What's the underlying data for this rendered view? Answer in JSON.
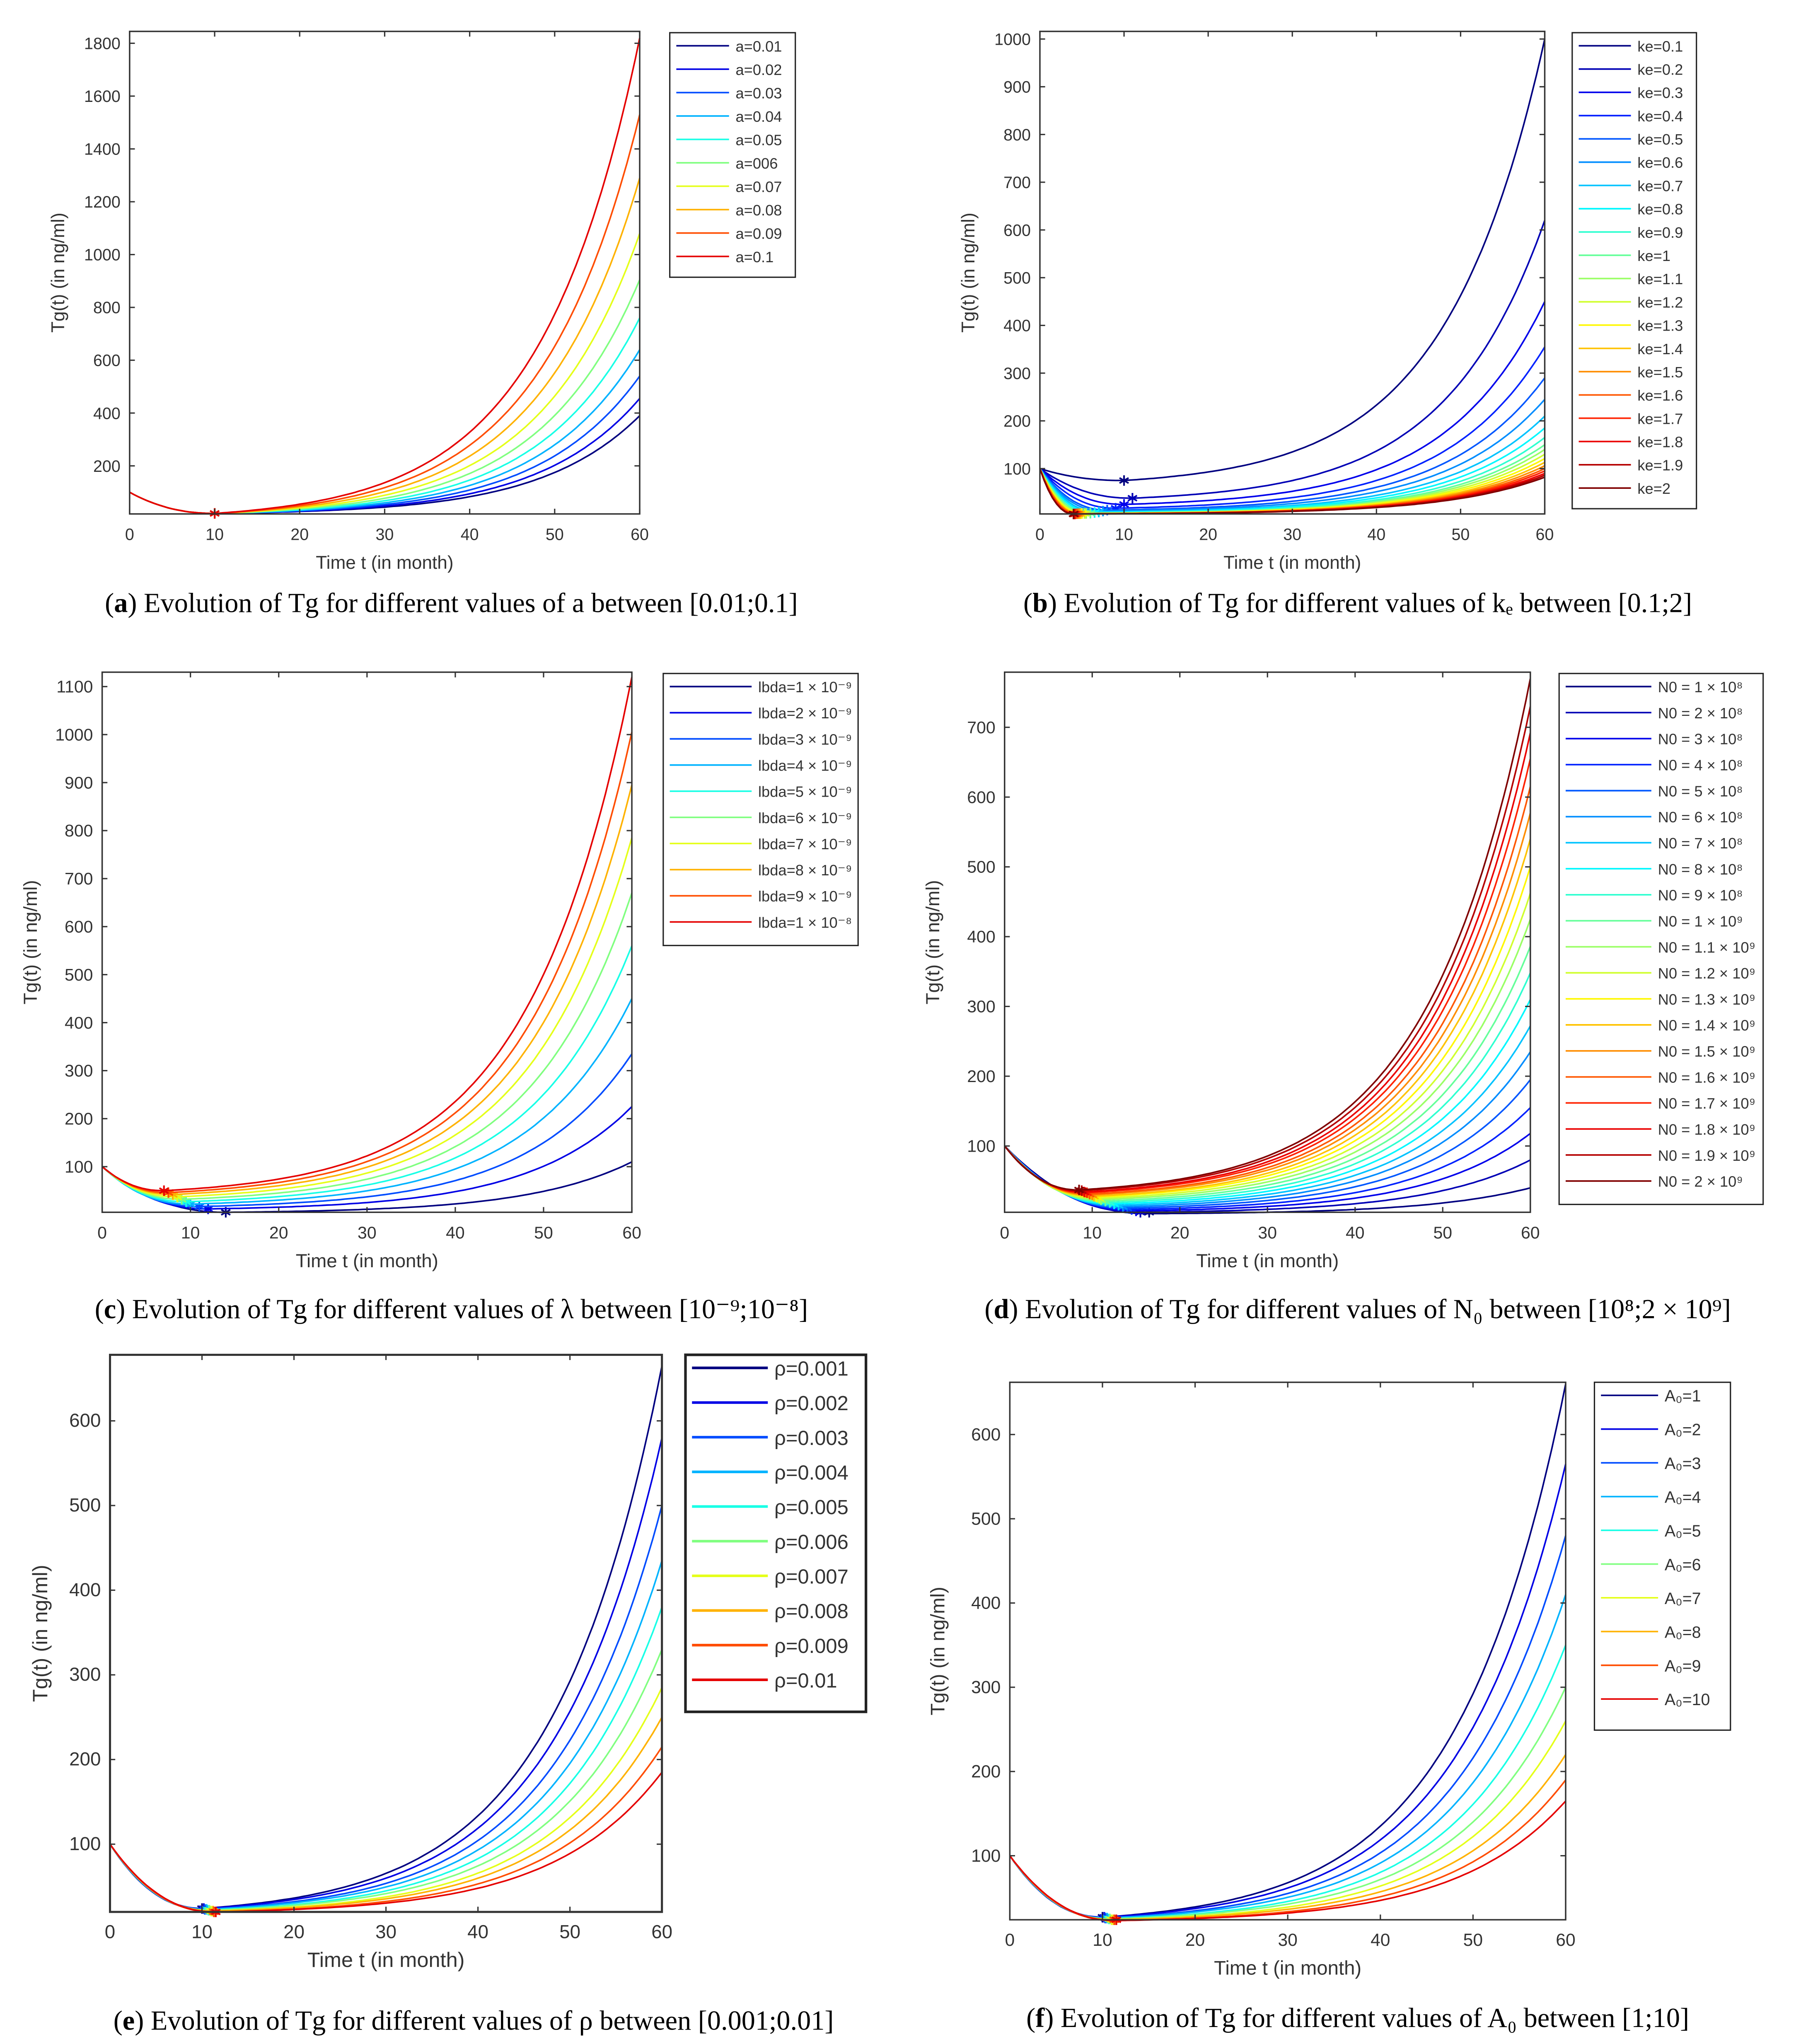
{
  "chart_data": [
    {
      "id": "a",
      "type": "line",
      "caption": {
        "label": "a",
        "text": "Evolution of Tg for different values of a between [0.01;0.1]"
      },
      "xlabel": "Time t (in month)",
      "ylabel": "Tg(t) (in ng/ml)",
      "xlim": [
        0,
        60
      ],
      "ylim": [
        18,
        1845
      ],
      "xticks": [
        0,
        10,
        20,
        30,
        40,
        50,
        60
      ],
      "yticks": [
        200,
        400,
        600,
        800,
        1000,
        1200,
        1400,
        1600,
        1800
      ],
      "colormap_max": 0.9,
      "legend_position": "outside-right",
      "series": [
        {
          "name": "a=0.01",
          "min": [
            10,
            20
          ],
          "end": 390
        },
        {
          "name": "a=0.02",
          "min": [
            10,
            20
          ],
          "end": 455
        },
        {
          "name": "a=0.03",
          "min": [
            10,
            20
          ],
          "end": 540
        },
        {
          "name": "a=0.04",
          "min": [
            10,
            20
          ],
          "end": 640
        },
        {
          "name": "a=0.05",
          "min": [
            10,
            20
          ],
          "end": 760
        },
        {
          "name": "a=006",
          "min": [
            10,
            20
          ],
          "end": 905
        },
        {
          "name": "a=0.07",
          "min": [
            10,
            20
          ],
          "end": 1080
        },
        {
          "name": "a=0.08",
          "min": [
            10,
            20
          ],
          "end": 1290
        },
        {
          "name": "a=0.09",
          "min": [
            10,
            20
          ],
          "end": 1530
        },
        {
          "name": "a=0.1",
          "min": [
            10,
            20
          ],
          "end": 1820
        }
      ]
    },
    {
      "id": "b",
      "type": "line",
      "caption": {
        "label": "b",
        "text": "Evolution of Tg for different values of kₑ between [0.1;2]"
      },
      "xlabel": "Time t (in month)",
      "ylabel": "Tg(t) (in ng/ml)",
      "xlim": [
        0,
        60
      ],
      "ylim": [
        5,
        1016
      ],
      "xticks": [
        0,
        10,
        20,
        30,
        40,
        50,
        60
      ],
      "yticks": [
        100,
        200,
        300,
        400,
        500,
        600,
        700,
        800,
        900,
        1000
      ],
      "colormap_max": 1.0,
      "legend_position": "outside-right",
      "series": [
        {
          "name": "ke=0.1",
          "min": [
            10,
            75
          ],
          "end": 1000
        },
        {
          "name": "ke=0.2",
          "min": [
            11,
            38
          ],
          "end": 620
        },
        {
          "name": "ke=0.3",
          "min": [
            10,
            25
          ],
          "end": 450
        },
        {
          "name": "ke=0.4",
          "min": [
            9,
            17
          ],
          "end": 355
        },
        {
          "name": "ke=0.5",
          "min": [
            8,
            13
          ],
          "end": 290
        },
        {
          "name": "ke=0.6",
          "min": [
            7.5,
            11
          ],
          "end": 245
        },
        {
          "name": "ke=0.7",
          "min": [
            7,
            9
          ],
          "end": 210
        },
        {
          "name": "ke=0.8",
          "min": [
            6.5,
            8
          ],
          "end": 185
        },
        {
          "name": "ke=0.9",
          "min": [
            6,
            7
          ],
          "end": 165
        },
        {
          "name": "ke=1",
          "min": [
            6,
            6.5
          ],
          "end": 150
        },
        {
          "name": "ke=1.1",
          "min": [
            5.5,
            6
          ],
          "end": 140
        },
        {
          "name": "ke=1.2",
          "min": [
            5.3,
            6
          ],
          "end": 130
        },
        {
          "name": "ke=1.3",
          "min": [
            5,
            6
          ],
          "end": 121
        },
        {
          "name": "ke=1.4",
          "min": [
            4.8,
            5.5
          ],
          "end": 113
        },
        {
          "name": "ke=1.5",
          "min": [
            4.6,
            5.5
          ],
          "end": 106
        },
        {
          "name": "ke=1.6",
          "min": [
            4.4,
            5.5
          ],
          "end": 100
        },
        {
          "name": "ke=1.7",
          "min": [
            4.2,
            5
          ],
          "end": 95
        },
        {
          "name": "ke=1.8",
          "min": [
            4.1,
            5
          ],
          "end": 90
        },
        {
          "name": "ke=1.9",
          "min": [
            4,
            5
          ],
          "end": 86
        },
        {
          "name": "ke=2",
          "min": [
            4,
            5
          ],
          "end": 82
        }
      ]
    },
    {
      "id": "c",
      "type": "line",
      "caption": {
        "label": "c",
        "text": "Evolution of Tg for different values of λ between [10⁻⁹;10⁻⁸]"
      },
      "xlabel": "Time t (in month)",
      "ylabel": "Tg(t) (in ng/ml)",
      "xlim": [
        0,
        60
      ],
      "ylim": [
        5,
        1130
      ],
      "xticks": [
        0,
        10,
        20,
        30,
        40,
        50,
        60
      ],
      "yticks": [
        100,
        200,
        300,
        400,
        500,
        600,
        700,
        800,
        900,
        1000,
        1100
      ],
      "colormap_max": 0.9,
      "legend_position": "outside-right",
      "series": [
        {
          "name": "lbda=1 × 10⁻⁹",
          "min": [
            14,
            5
          ],
          "end": 110
        },
        {
          "name": "lbda=2 × 10⁻⁹",
          "min": [
            12,
            12
          ],
          "end": 225
        },
        {
          "name": "lbda=3 × 10⁻⁹",
          "min": [
            11,
            17
          ],
          "end": 335
        },
        {
          "name": "lbda=4 × 10⁻⁹",
          "min": [
            10,
            22
          ],
          "end": 450
        },
        {
          "name": "lbda=5 × 10⁻⁹",
          "min": [
            9.5,
            27
          ],
          "end": 560
        },
        {
          "name": "lbda=6 × 10⁻⁹",
          "min": [
            9,
            32
          ],
          "end": 670
        },
        {
          "name": "lbda=7 × 10⁻⁹",
          "min": [
            8.5,
            37
          ],
          "end": 785
        },
        {
          "name": "lbda=8 × 10⁻⁹",
          "min": [
            8,
            42
          ],
          "end": 895
        },
        {
          "name": "lbda=9 × 10⁻⁹",
          "min": [
            7.5,
            46
          ],
          "end": 1005
        },
        {
          "name": "lbda=1 × 10⁻⁸",
          "min": [
            7,
            50
          ],
          "end": 1120
        }
      ]
    },
    {
      "id": "d",
      "type": "line",
      "caption": {
        "label": "d",
        "text": "Evolution of Tg for different values of N₀ between [10⁸;2 × 10⁹]"
      },
      "xlabel": "Time t (in month)",
      "ylabel": "Tg(t) (in ng/ml)",
      "xlim": [
        0,
        60
      ],
      "ylim": [
        5,
        779
      ],
      "xticks": [
        0,
        10,
        20,
        30,
        40,
        50,
        60
      ],
      "yticks": [
        100,
        200,
        300,
        400,
        500,
        600,
        700
      ],
      "colormap_max": 1.0,
      "legend_position": "outside-right",
      "series": [
        {
          "name": "N0 = 1 × 10⁸",
          "min": [
            16.5,
            3
          ],
          "end": 40
        },
        {
          "name": "N0 = 2 × 10⁸",
          "min": [
            15.5,
            5
          ],
          "end": 80
        },
        {
          "name": "N0 = 3 × 10⁸",
          "min": [
            15,
            7
          ],
          "end": 118
        },
        {
          "name": "N0 = 4 × 10⁸",
          "min": [
            14.5,
            9
          ],
          "end": 155
        },
        {
          "name": "N0 = 5 × 10⁸",
          "min": [
            14,
            11
          ],
          "end": 195
        },
        {
          "name": "N0 = 6 × 10⁸",
          "min": [
            13.5,
            13
          ],
          "end": 235
        },
        {
          "name": "N0 = 7 × 10⁸",
          "min": [
            13,
            15
          ],
          "end": 272
        },
        {
          "name": "N0 = 8 × 10⁸",
          "min": [
            12.5,
            17
          ],
          "end": 310
        },
        {
          "name": "N0 = 9 × 10⁸",
          "min": [
            12,
            19
          ],
          "end": 348
        },
        {
          "name": "N0 = 1 × 10⁹",
          "min": [
            11.5,
            21
          ],
          "end": 386
        },
        {
          "name": "N0 = 1.1 × 10⁹",
          "min": [
            11,
            23
          ],
          "end": 425
        },
        {
          "name": "N0 = 1.2 × 10⁹",
          "min": [
            10.8,
            25
          ],
          "end": 462
        },
        {
          "name": "N0 = 1.3 × 10⁹",
          "min": [
            10.5,
            27
          ],
          "end": 500
        },
        {
          "name": "N0 = 1.4 × 10⁹",
          "min": [
            10.2,
            28
          ],
          "end": 540
        },
        {
          "name": "N0 = 1.5 × 10⁹",
          "min": [
            10,
            30
          ],
          "end": 577
        },
        {
          "name": "N0 = 1.6 × 10⁹",
          "min": [
            9.7,
            31
          ],
          "end": 615
        },
        {
          "name": "N0 = 1.7 × 10⁹",
          "min": [
            9.4,
            33
          ],
          "end": 655
        },
        {
          "name": "N0 = 1.8 × 10⁹",
          "min": [
            9.1,
            34
          ],
          "end": 692
        },
        {
          "name": "N0 = 1.9 × 10⁹",
          "min": [
            8.8,
            36
          ],
          "end": 730
        },
        {
          "name": "N0 = 2 × 10⁹",
          "min": [
            8.5,
            37
          ],
          "end": 770
        }
      ]
    },
    {
      "id": "e",
      "type": "line",
      "caption": {
        "label": "e",
        "text": "Evolution of Tg for different values of ρ between [0.001;0.01]"
      },
      "xlabel": "Time t (in month)",
      "ylabel": "Tg(t) (in ng/ml)",
      "xlim": [
        0,
        60
      ],
      "ylim": [
        20,
        678
      ],
      "xticks": [
        0,
        10,
        20,
        30,
        40,
        50,
        60
      ],
      "yticks": [
        100,
        200,
        300,
        400,
        500,
        600
      ],
      "colormap_max": 0.9,
      "legend_position": "outside-right",
      "series": [
        {
          "name": "ρ=0.001",
          "min": [
            10,
            24
          ],
          "end": 665
        },
        {
          "name": "ρ=0.002",
          "min": [
            10.2,
            24
          ],
          "end": 580
        },
        {
          "name": "ρ=0.003",
          "min": [
            10.3,
            23
          ],
          "end": 500
        },
        {
          "name": "ρ=0.004",
          "min": [
            10.5,
            23
          ],
          "end": 435
        },
        {
          "name": "ρ=0.005",
          "min": [
            10.7,
            22
          ],
          "end": 380
        },
        {
          "name": "ρ=0.006",
          "min": [
            10.8,
            22
          ],
          "end": 330
        },
        {
          "name": "ρ=0.007",
          "min": [
            11,
            21
          ],
          "end": 285
        },
        {
          "name": "ρ=0.008",
          "min": [
            11.2,
            21
          ],
          "end": 250
        },
        {
          "name": "ρ=0.009",
          "min": [
            11.3,
            20
          ],
          "end": 215
        },
        {
          "name": "ρ=0.01",
          "min": [
            11.5,
            20
          ],
          "end": 185
        }
      ]
    },
    {
      "id": "f",
      "type": "line",
      "caption": {
        "label": "f",
        "text": "Evolution of Tg for different values of A₀ between [1;10]"
      },
      "xlabel": "Time t (in month)",
      "ylabel": "Tg(t) (in ng/ml)",
      "xlim": [
        0,
        60
      ],
      "ylim": [
        24,
        662
      ],
      "xticks": [
        0,
        10,
        20,
        30,
        40,
        50,
        60
      ],
      "yticks": [
        100,
        200,
        300,
        400,
        500,
        600
      ],
      "colormap_max": 0.9,
      "legend_position": "outside-right",
      "series": [
        {
          "name": "A₀=1",
          "min": [
            10,
            27
          ],
          "end": 660
        },
        {
          "name": "A₀=2",
          "min": [
            10.2,
            27
          ],
          "end": 565
        },
        {
          "name": "A₀=3",
          "min": [
            10.3,
            26
          ],
          "end": 480
        },
        {
          "name": "A₀=4",
          "min": [
            10.5,
            26
          ],
          "end": 410
        },
        {
          "name": "A₀=5",
          "min": [
            10.7,
            25
          ],
          "end": 350
        },
        {
          "name": "A₀=6",
          "min": [
            10.8,
            25
          ],
          "end": 300
        },
        {
          "name": "A₀=7",
          "min": [
            11,
            24
          ],
          "end": 260
        },
        {
          "name": "A₀=8",
          "min": [
            11.2,
            24
          ],
          "end": 220
        },
        {
          "name": "A₀=9",
          "min": [
            11.3,
            23
          ],
          "end": 190
        },
        {
          "name": "A₀=10",
          "min": [
            11.5,
            23
          ],
          "end": 165
        }
      ]
    }
  ]
}
